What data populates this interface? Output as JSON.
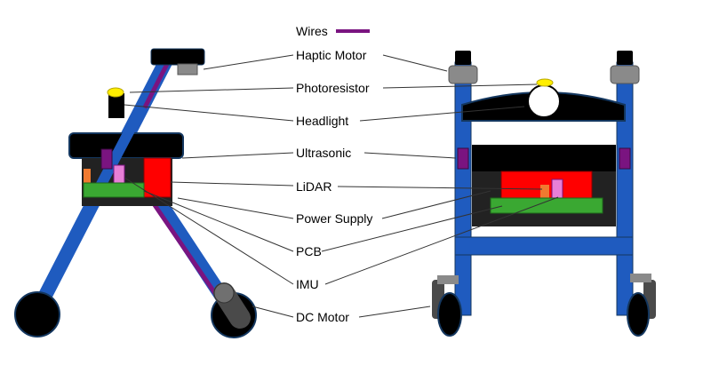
{
  "legend": {
    "label": "Wires",
    "color": "#7a1480"
  },
  "labels": {
    "haptic": "Haptic Motor",
    "photo": "Photoresistor",
    "headlight": "Headlight",
    "ultrasonic": "Ultrasonic",
    "lidar": "LiDAR",
    "power": "Power Supply",
    "pcb": "PCB",
    "imu": "IMU",
    "dcmotor": "DC Motor"
  },
  "colors": {
    "frame": "#1f5bbf",
    "body": "#000000",
    "housing": "#222222",
    "lidar": "#ff0000",
    "pcb": "#3aa832",
    "imu": "#e87fd6",
    "power": "#f07a30",
    "ultrasonic": "#7a1480",
    "haptic": "#8a8a8a",
    "photoresistor": "#ffee00",
    "wheel": "#000000",
    "motor": "#4a4a4a"
  }
}
